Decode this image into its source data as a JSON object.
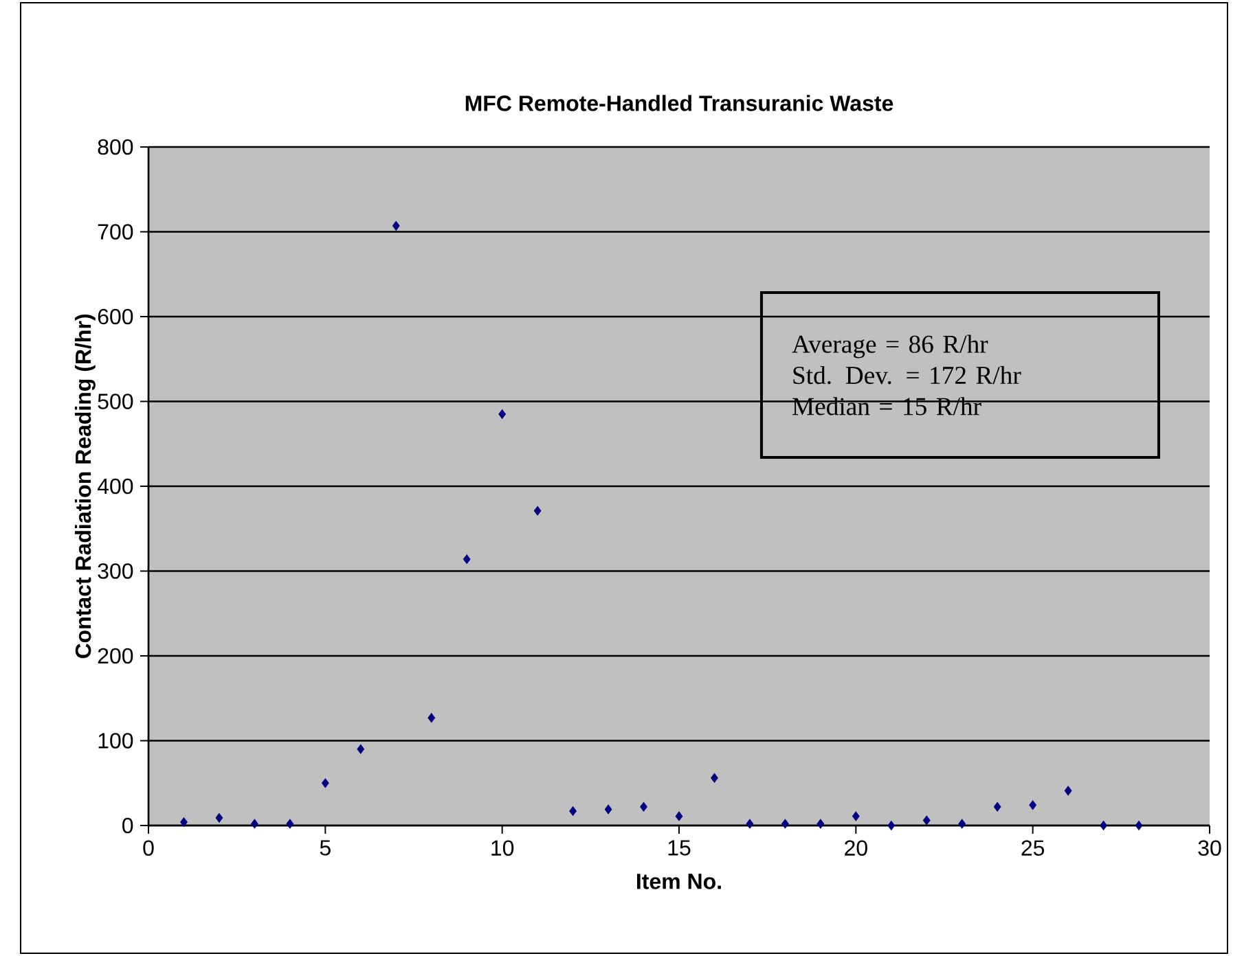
{
  "chart_data": {
    "type": "scatter",
    "title": "MFC Remote-Handled Transuranic Waste",
    "xlabel": "Item No.",
    "ylabel": "Contact Radiation Reading (R/hr)",
    "x": [
      1,
      2,
      3,
      4,
      5,
      6,
      7,
      8,
      9,
      10,
      11,
      12,
      13,
      14,
      15,
      16,
      17,
      18,
      19,
      20,
      21,
      22,
      23,
      24,
      25,
      26,
      27,
      28
    ],
    "values": [
      4,
      9,
      2,
      2,
      50,
      90,
      707,
      127,
      314,
      485,
      371,
      17,
      19,
      22,
      11,
      56,
      2,
      2,
      2,
      11,
      0,
      6,
      2,
      22,
      24,
      41,
      0,
      0
    ],
    "color": "#000080",
    "marker": "diamond",
    "xlim": [
      0,
      30
    ],
    "ylim": [
      0,
      800
    ],
    "xticks": [
      0,
      5,
      10,
      15,
      20,
      25,
      30
    ],
    "yticks": [
      0,
      100,
      200,
      300,
      400,
      500,
      600,
      700,
      800
    ],
    "grid": "y",
    "annotations": [
      "Average =  86 R/hr",
      "Std. Dev. = 172 R/hr",
      "Median = 15 R/hr"
    ]
  }
}
